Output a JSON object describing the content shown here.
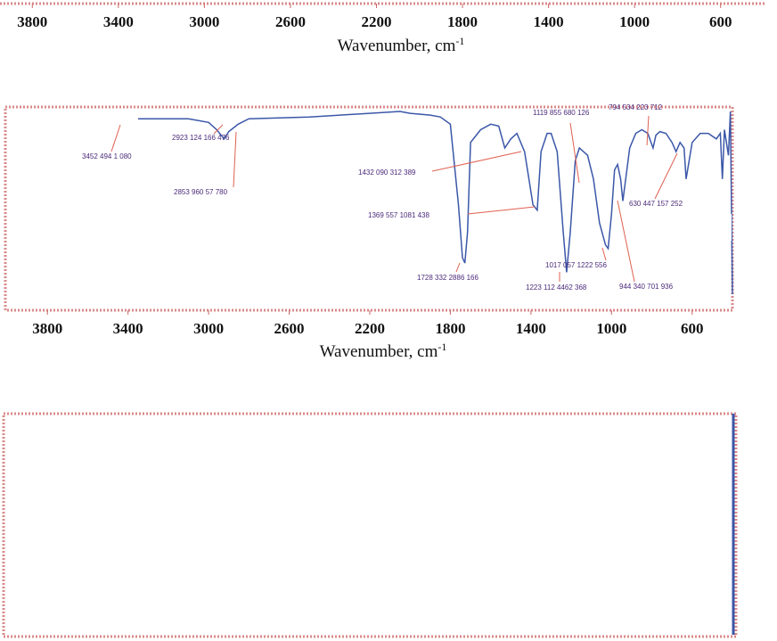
{
  "chart_data": {
    "type": "line",
    "x_label": "Wavenumber, cm",
    "x_label_sup": "-1",
    "xlim": [
      4000,
      400
    ],
    "xticks": [
      3800,
      3400,
      3000,
      2600,
      2200,
      1800,
      1400,
      1000,
      600
    ],
    "series": [
      {
        "color": "#3b57a8",
        "x": [
          3350,
          3100,
          3000,
          2960,
          2923,
          2900,
          2853,
          2800,
          2500,
          2200,
          2050,
          2000,
          1900,
          1850,
          1800,
          1760,
          1740,
          1728,
          1715,
          1700,
          1650,
          1600,
          1560,
          1530,
          1500,
          1470,
          1432,
          1410,
          1390,
          1369,
          1350,
          1320,
          1300,
          1270,
          1240,
          1223,
          1205,
          1180,
          1160,
          1119,
          1090,
          1060,
          1030,
          1017,
          1000,
          985,
          970,
          955,
          944,
          930,
          910,
          880,
          850,
          820,
          794,
          780,
          760,
          730,
          700,
          680,
          660,
          640,
          630,
          615,
          600,
          560,
          520,
          480,
          460,
          450,
          440,
          420,
          410,
          400
        ],
        "values": [
          96,
          96,
          94,
          90,
          85,
          89,
          93,
          96,
          97,
          99,
          100,
          99,
          98,
          97,
          93,
          49,
          20,
          17,
          34,
          83,
          90,
          93,
          92,
          80,
          85,
          88,
          78,
          63,
          49,
          46,
          78,
          88,
          88,
          78,
          34,
          12,
          34,
          73,
          80,
          76,
          63,
          39,
          27,
          25,
          44,
          68,
          71,
          63,
          51,
          63,
          80,
          88,
          90,
          88,
          80,
          87,
          89,
          88,
          83,
          78,
          83,
          80,
          63,
          73,
          83,
          88,
          88,
          85,
          88,
          63,
          90,
          76,
          100,
          0
        ]
      }
    ],
    "annotations": [
      "3452 494  1 080",
      "2923 124  166 476",
      "2853 960  57 780",
      "1432 090  312 389",
      "1369 557  1081 438",
      "1728 332  2886 166",
      "1223 112  4462 368",
      "1119 855  680 126",
      "1017 057  1222 556",
      "944 340  701 936",
      "794 534  223 712",
      "630 447  157 252"
    ]
  }
}
